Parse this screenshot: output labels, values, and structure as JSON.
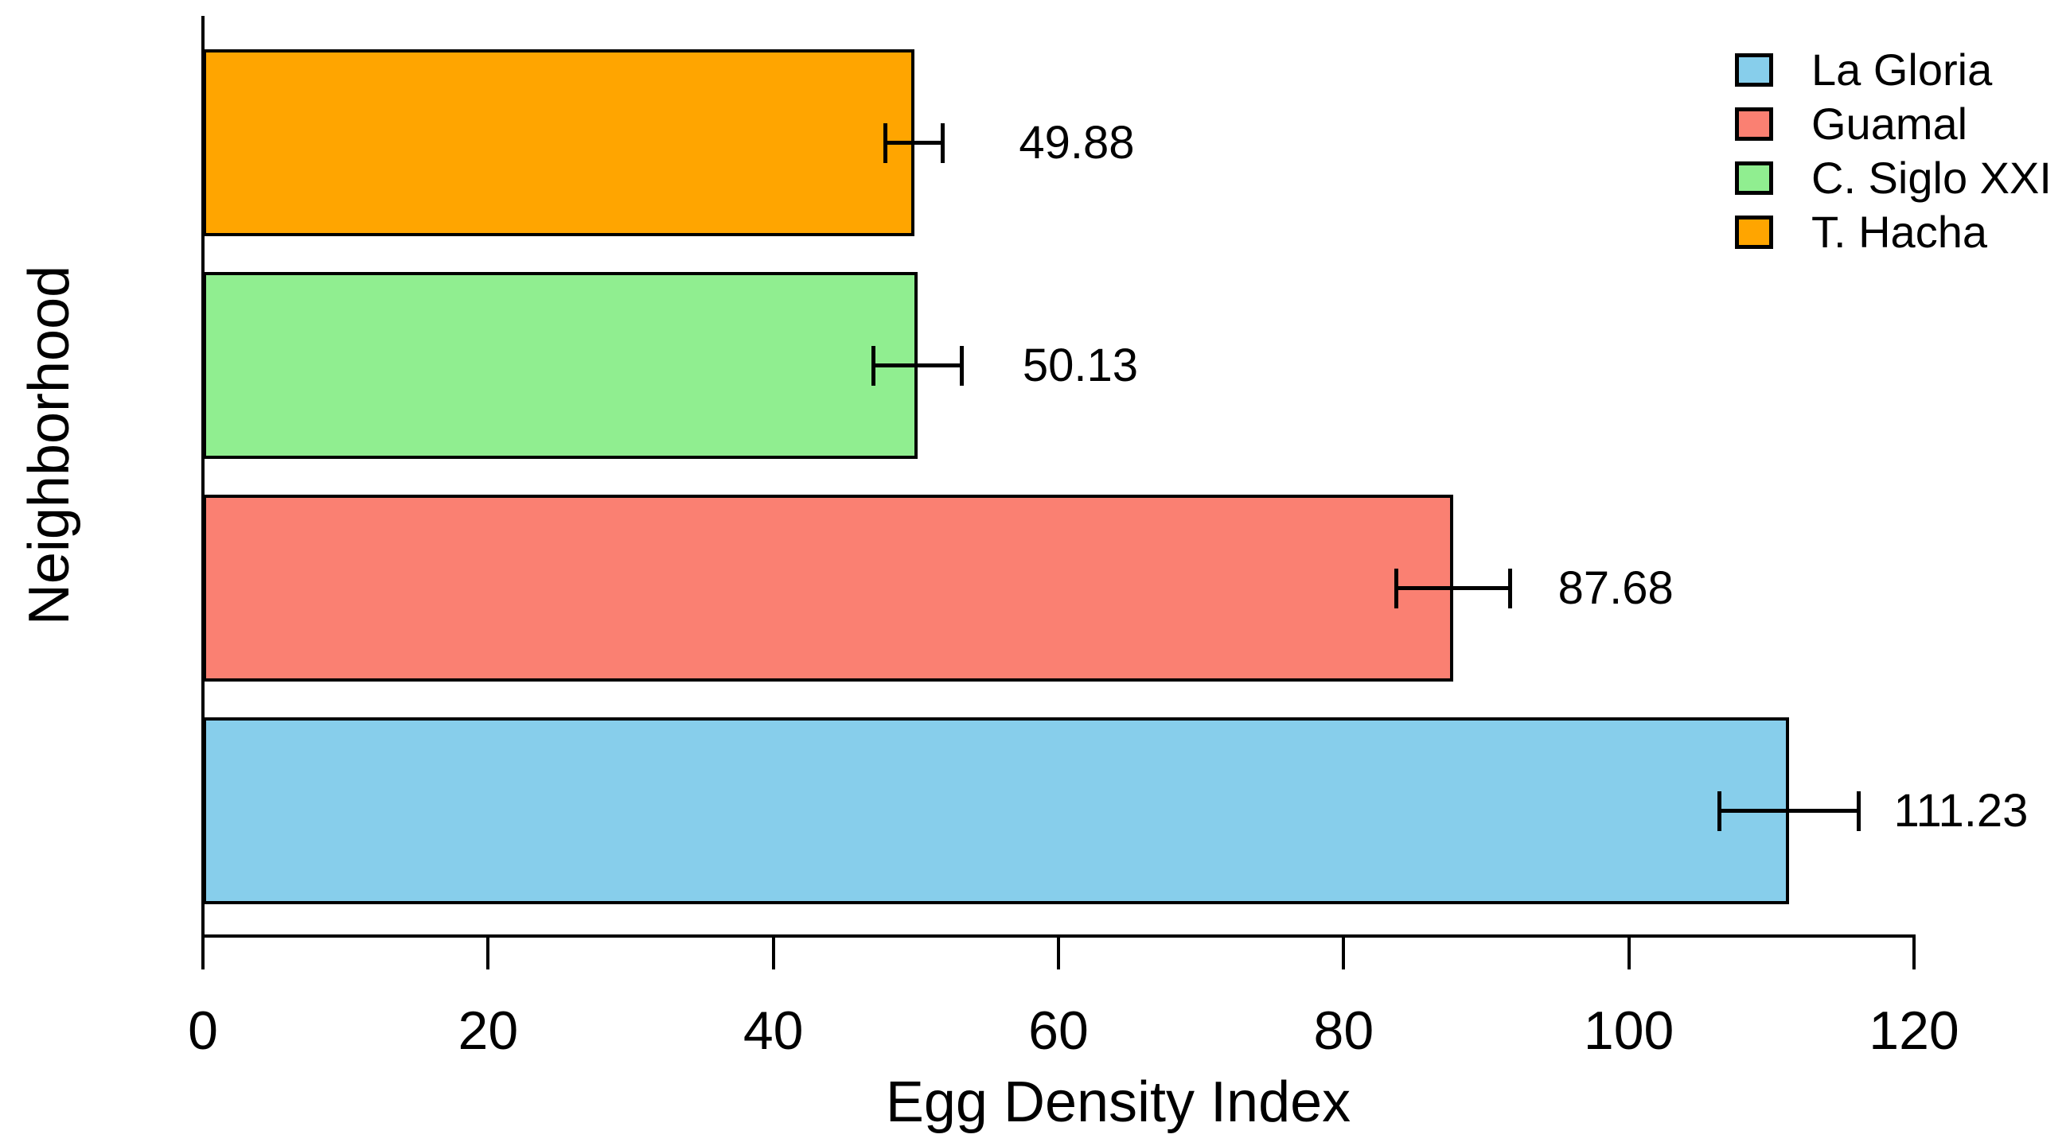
{
  "chart_data": {
    "type": "bar",
    "orientation": "horizontal",
    "title": "",
    "xlabel": "Egg Density Index",
    "ylabel": "Neighborhood",
    "xlim": [
      0,
      120
    ],
    "xticks": [
      0,
      20,
      40,
      60,
      80,
      100,
      120
    ],
    "grid": false,
    "legend_position": "top-right",
    "bar_order": "bottom-to-top",
    "categories": [
      "La Gloria",
      "Guamal",
      "C. Siglo XXI",
      "T. Hacha"
    ],
    "values": [
      111.23,
      87.68,
      50.13,
      49.88
    ],
    "errors": [
      4.9,
      4.0,
      3.1,
      2.0
    ],
    "value_labels": [
      "111.23",
      "87.68",
      "50.13",
      "49.88"
    ],
    "colors": [
      "#87CEEB",
      "#FA8072",
      "#90EE90",
      "#FFA500"
    ],
    "bar_border_color": "#000000",
    "axis_color": "#000000",
    "legend": [
      {
        "label": "La Gloria",
        "color": "#87CEEB"
      },
      {
        "label": "Guamal",
        "color": "#FA8072"
      },
      {
        "label": "C. Siglo XXI",
        "color": "#90EE90"
      },
      {
        "label": "T. Hacha",
        "color": "#FFA500"
      }
    ]
  }
}
